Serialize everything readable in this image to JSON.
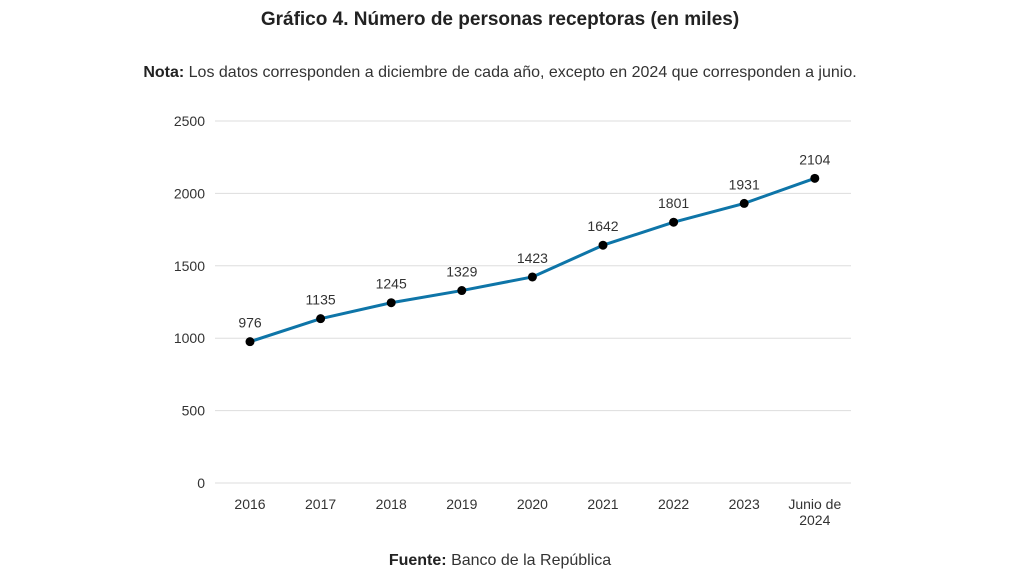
{
  "title": "Gráfico 4. Número de personas receptoras (en miles)",
  "note": {
    "label": "Nota:",
    "text": "Los datos corresponden a diciembre de cada año, excepto en 2024 que corresponden a junio."
  },
  "source": {
    "label": "Fuente:",
    "text": "Banco de la República"
  },
  "colors": {
    "line": "#0e75a8",
    "marker": "#000000",
    "grid": "#dddddd"
  },
  "chart_data": {
    "type": "line",
    "title": "Gráfico 4. Número de personas receptoras (en miles)",
    "categories": [
      "2016",
      "2017",
      "2018",
      "2019",
      "2020",
      "2021",
      "2022",
      "2023",
      "Junio de 2024"
    ],
    "category_lines": [
      [
        "2016"
      ],
      [
        "2017"
      ],
      [
        "2018"
      ],
      [
        "2019"
      ],
      [
        "2020"
      ],
      [
        "2021"
      ],
      [
        "2022"
      ],
      [
        "2023"
      ],
      [
        "Junio de",
        "2024"
      ]
    ],
    "values": [
      976,
      1135,
      1245,
      1329,
      1423,
      1642,
      1801,
      1931,
      2104
    ],
    "ylim": [
      0,
      2500
    ],
    "yticks": [
      0,
      500,
      1000,
      1500,
      2000,
      2500
    ],
    "grid": true,
    "markers": true,
    "data_labels": true
  }
}
